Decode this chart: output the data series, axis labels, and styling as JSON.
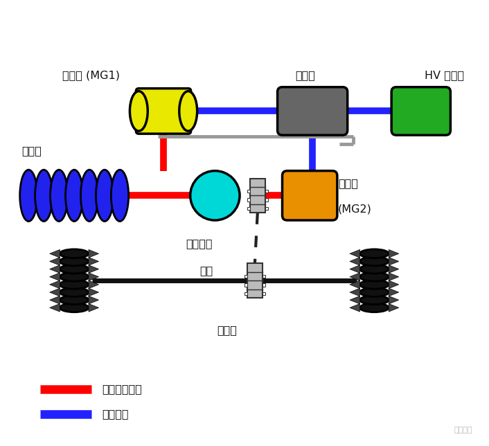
{
  "bg_color": "#ffffff",
  "fig_width": 7.06,
  "fig_height": 6.44,
  "dpi": 100,
  "components": {
    "engine_color": "#2222ee",
    "mg1_color": "#e8e800",
    "inverter_color": "#666666",
    "battery_color": "#22aa22",
    "psd_color": "#00d8d8",
    "mg2_color": "#e89000",
    "wheel_color": "#111111",
    "coupler_color": "#bbbbbb",
    "coupler_edge": "#333333"
  },
  "colors": {
    "red_line": "#ff0000",
    "blue_line": "#2222ff",
    "black_line": "#111111",
    "gray_line": "#999999",
    "dashed_line": "#222222"
  },
  "labels": {
    "engine": "发动机",
    "mg1": "发电机 (MG1)",
    "inverter": "逆变器",
    "battery": "HV 蓄电池",
    "psd_line1": "动力分配",
    "psd_line2": "设备",
    "mg2_line1": "电动机",
    "mg2_line2": "(MG2)",
    "axle": "传动桥",
    "mech_path": "机械动力路径",
    "elec_path": "电力路径",
    "watermark": "驱动视界"
  },
  "layout": {
    "xlim": [
      0,
      7.06
    ],
    "ylim": [
      0,
      6.44
    ],
    "y_top": 5.2,
    "y_mid": 3.55,
    "y_bot": 1.65,
    "x_engine": 1.1,
    "x_mg1": 2.45,
    "x_psd": 3.35,
    "x_coup_mid": 4.0,
    "x_mg2": 4.7,
    "x_inv": 4.9,
    "x_bat": 6.35,
    "x_wl": 1.1,
    "x_wr": 5.65,
    "x_axle_coup": 3.85
  }
}
